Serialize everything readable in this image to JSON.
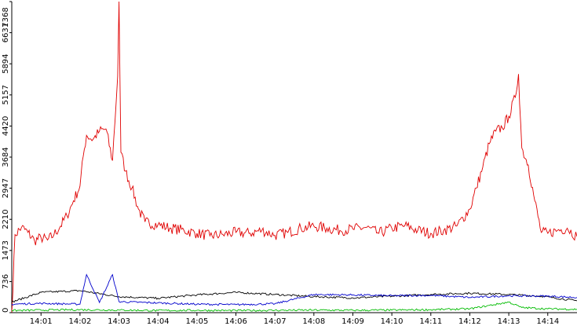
{
  "chart_data": {
    "type": "line",
    "title": "",
    "xlabel": "",
    "ylabel": "",
    "ylim": [
      0,
      7368
    ],
    "yticks": [
      0,
      736,
      1473,
      2210,
      2947,
      3684,
      4420,
      5157,
      5894,
      6631,
      7368
    ],
    "xlim": [
      "14:00:15",
      "14:14:45"
    ],
    "xticks": [
      "14:01",
      "14:02",
      "14:03",
      "14:04",
      "14:05",
      "14:06",
      "14:07",
      "14:08",
      "14:09",
      "14:10",
      "14:11",
      "14:12",
      "14:13",
      "14:14"
    ],
    "grid": false,
    "legend": "none",
    "series": [
      {
        "color": "#e00000",
        "points": [
          [
            "14:00:15",
            0
          ],
          [
            "14:00:20",
            1850
          ],
          [
            "14:00:30",
            2020
          ],
          [
            "14:00:40",
            1900
          ],
          [
            "14:00:50",
            1700
          ],
          [
            "14:01:00",
            1780
          ],
          [
            "14:01:10",
            1720
          ],
          [
            "14:01:20",
            1850
          ],
          [
            "14:01:30",
            2050
          ],
          [
            "14:01:40",
            2300
          ],
          [
            "14:01:50",
            2650
          ],
          [
            "14:02:00",
            3000
          ],
          [
            "14:02:05",
            3700
          ],
          [
            "14:02:10",
            4200
          ],
          [
            "14:02:20",
            4100
          ],
          [
            "14:02:30",
            4300
          ],
          [
            "14:02:40",
            4350
          ],
          [
            "14:02:50",
            3600
          ],
          [
            "14:02:58",
            5600
          ],
          [
            "14:03:00",
            7368
          ],
          [
            "14:03:03",
            3800
          ],
          [
            "14:03:10",
            3350
          ],
          [
            "14:03:20",
            2950
          ],
          [
            "14:03:30",
            2450
          ],
          [
            "14:03:40",
            2150
          ],
          [
            "14:04:00",
            2080
          ],
          [
            "14:04:20",
            2000
          ],
          [
            "14:04:40",
            1950
          ],
          [
            "14:05:00",
            1880
          ],
          [
            "14:05:20",
            1820
          ],
          [
            "14:05:40",
            1850
          ],
          [
            "14:06:00",
            1900
          ],
          [
            "14:06:20",
            1880
          ],
          [
            "14:06:40",
            1950
          ],
          [
            "14:07:00",
            1830
          ],
          [
            "14:07:20",
            1900
          ],
          [
            "14:07:40",
            2000
          ],
          [
            "14:08:00",
            2050
          ],
          [
            "14:08:20",
            2000
          ],
          [
            "14:08:40",
            1950
          ],
          [
            "14:09:00",
            1980
          ],
          [
            "14:09:20",
            2020
          ],
          [
            "14:09:40",
            1880
          ],
          [
            "14:10:00",
            2000
          ],
          [
            "14:10:20",
            2060
          ],
          [
            "14:10:40",
            1950
          ],
          [
            "14:11:00",
            1880
          ],
          [
            "14:11:20",
            1950
          ],
          [
            "14:11:40",
            2050
          ],
          [
            "14:12:00",
            2450
          ],
          [
            "14:12:10",
            2950
          ],
          [
            "14:12:20",
            3450
          ],
          [
            "14:12:30",
            4000
          ],
          [
            "14:12:40",
            4300
          ],
          [
            "14:12:50",
            4380
          ],
          [
            "14:13:00",
            4650
          ],
          [
            "14:13:10",
            5100
          ],
          [
            "14:13:15",
            5650
          ],
          [
            "14:13:20",
            3900
          ],
          [
            "14:13:30",
            3500
          ],
          [
            "14:13:40",
            2650
          ],
          [
            "14:13:50",
            1900
          ],
          [
            "14:14:00",
            1880
          ],
          [
            "14:14:15",
            1950
          ],
          [
            "14:14:30",
            2000
          ],
          [
            "14:14:45",
            1800
          ]
        ]
      },
      {
        "color": "#000000",
        "points": [
          [
            "14:00:15",
            250
          ],
          [
            "14:01:00",
            480
          ],
          [
            "14:02:00",
            520
          ],
          [
            "14:03:00",
            380
          ],
          [
            "14:04:00",
            340
          ],
          [
            "14:05:00",
            420
          ],
          [
            "14:06:00",
            480
          ],
          [
            "14:07:00",
            430
          ],
          [
            "14:08:00",
            380
          ],
          [
            "14:09:00",
            350
          ],
          [
            "14:10:00",
            390
          ],
          [
            "14:11:00",
            430
          ],
          [
            "14:12:00",
            460
          ],
          [
            "14:13:00",
            430
          ],
          [
            "14:13:50",
            390
          ],
          [
            "14:14:45",
            280
          ]
        ]
      },
      {
        "color": "#0000cc",
        "points": [
          [
            "14:00:15",
            200
          ],
          [
            "14:01:00",
            220
          ],
          [
            "14:02:00",
            200
          ],
          [
            "14:02:10",
            900
          ],
          [
            "14:02:30",
            240
          ],
          [
            "14:02:50",
            900
          ],
          [
            "14:03:00",
            260
          ],
          [
            "14:04:00",
            230
          ],
          [
            "14:05:00",
            200
          ],
          [
            "14:06:00",
            190
          ],
          [
            "14:07:00",
            210
          ],
          [
            "14:08:00",
            430
          ],
          [
            "14:09:00",
            420
          ],
          [
            "14:10:00",
            400
          ],
          [
            "14:11:00",
            410
          ],
          [
            "14:12:00",
            360
          ],
          [
            "14:13:00",
            400
          ],
          [
            "14:14:00",
            390
          ],
          [
            "14:14:45",
            360
          ]
        ]
      },
      {
        "color": "#00bb00",
        "points": [
          [
            "14:00:15",
            50
          ],
          [
            "14:01:00",
            60
          ],
          [
            "14:02:00",
            70
          ],
          [
            "14:03:00",
            60
          ],
          [
            "14:04:00",
            50
          ],
          [
            "14:05:00",
            55
          ],
          [
            "14:06:00",
            50
          ],
          [
            "14:07:00",
            55
          ],
          [
            "14:08:00",
            60
          ],
          [
            "14:09:00",
            55
          ],
          [
            "14:10:00",
            60
          ],
          [
            "14:11:00",
            70
          ],
          [
            "14:12:00",
            90
          ],
          [
            "14:13:00",
            250
          ],
          [
            "14:13:20",
            120
          ],
          [
            "14:14:00",
            90
          ],
          [
            "14:14:45",
            80
          ]
        ]
      }
    ]
  }
}
